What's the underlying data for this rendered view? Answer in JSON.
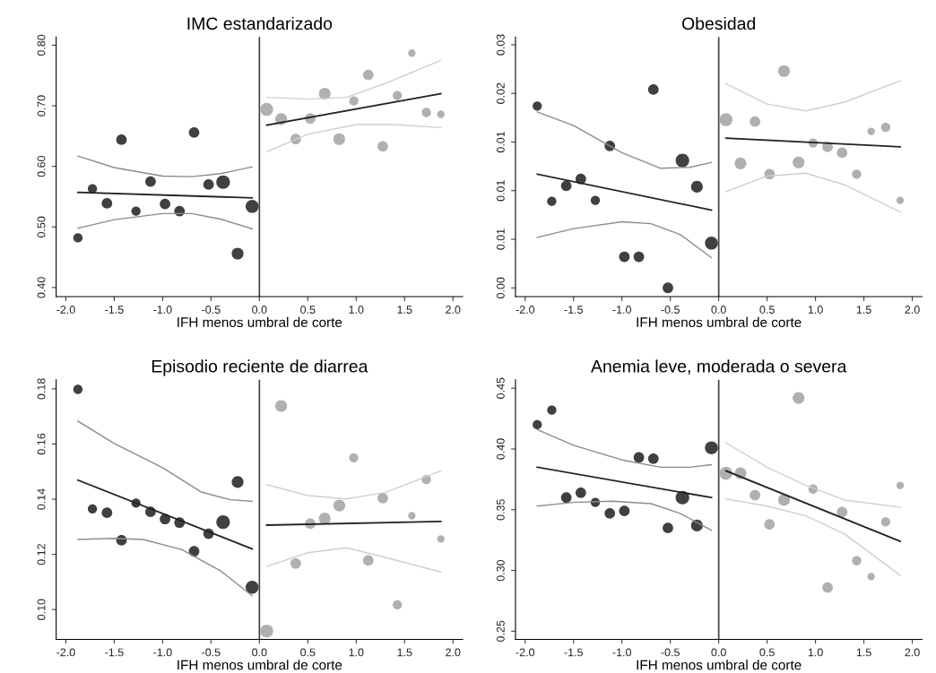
{
  "chart_data": [
    {
      "type": "bubble",
      "title": "IMC estandarizado",
      "xlabel": "IFH menos umbral de corte",
      "xlim": [
        -2.1,
        2.1
      ],
      "xticks": [
        {
          "value": -2,
          "label": "-2.0"
        },
        {
          "value": -1.5,
          "label": "-1.5"
        },
        {
          "value": -1,
          "label": "-1.0"
        },
        {
          "value": -0.5,
          "label": "-0.5"
        },
        {
          "value": 0,
          "label": "0.0"
        },
        {
          "value": 0.5,
          "label": "0.5"
        },
        {
          "value": 1,
          "label": "1.0"
        },
        {
          "value": 1.5,
          "label": "1.5"
        },
        {
          "value": 2,
          "label": "2.0"
        }
      ],
      "ylim": [
        0.385,
        0.8135
      ],
      "yticks": [
        {
          "value": 0.4,
          "label": "0.40"
        },
        {
          "value": 0.5,
          "label": "0.50"
        },
        {
          "value": 0.6,
          "label": "0.60"
        },
        {
          "value": 0.7,
          "label": "0.70"
        },
        {
          "value": 0.8,
          "label": "0.80"
        }
      ],
      "grid": false,
      "ref_lines": [
        {
          "axis": "x",
          "value": 0,
          "color": "#404040"
        }
      ],
      "series": [
        {
          "color": "#404040",
          "x": [
            -1.875,
            -1.725,
            -1.575,
            -1.425,
            -1.275,
            -1.125,
            -0.975,
            -0.825,
            -0.675,
            -0.525,
            -0.375,
            -0.225,
            -0.075
          ],
          "values": [
            0.482,
            0.563,
            0.539,
            0.644,
            0.526,
            0.575,
            0.538,
            0.526,
            0.656,
            0.57,
            0.574,
            0.456,
            0.534
          ],
          "sizes": [
            0.46,
            0.46,
            0.6,
            0.6,
            0.46,
            0.6,
            0.6,
            0.6,
            0.6,
            0.6,
            1,
            0.75,
            0.91
          ]
        },
        {
          "color": "#b0b0b0",
          "x": [
            0.075,
            0.225,
            0.375,
            0.525,
            0.675,
            0.825,
            0.975,
            1.125,
            1.275,
            1.425,
            1.575,
            1.725,
            1.875
          ],
          "values": [
            0.694,
            0.678,
            0.645,
            0.679,
            0.72,
            0.645,
            0.708,
            0.751,
            0.633,
            0.717,
            0.787,
            0.689,
            0.686
          ],
          "sizes": [
            0.91,
            0.75,
            0.6,
            0.6,
            0.75,
            0.75,
            0.46,
            0.6,
            0.6,
            0.46,
            0.3,
            0.46,
            0.3
          ]
        },
        {
          "type": "line",
          "color": "#8c8c8c",
          "x": [
            -1.875,
            -1.5,
            -1.0,
            -0.7,
            -0.4,
            -0.075
          ],
          "values": [
            0.617,
            0.598,
            0.584,
            0.583,
            0.588,
            0.599
          ]
        },
        {
          "type": "line",
          "color": "#8c8c8c",
          "x": [
            -1.875,
            -1.5,
            -1.0,
            -0.7,
            -0.4,
            -0.075
          ],
          "values": [
            0.498,
            0.512,
            0.522,
            0.522,
            0.513,
            0.497
          ]
        },
        {
          "type": "line",
          "color": "#cfcfcf",
          "x": [
            0.075,
            0.5,
            0.9,
            1.3,
            1.875
          ],
          "values": [
            0.714,
            0.711,
            0.714,
            0.737,
            0.775
          ]
        },
        {
          "type": "line",
          "color": "#cfcfcf",
          "x": [
            0.075,
            0.5,
            1.0,
            1.4,
            1.875
          ],
          "values": [
            0.624,
            0.653,
            0.669,
            0.669,
            0.664
          ]
        },
        {
          "type": "line",
          "color": "#222222",
          "x": [
            -1.875,
            -0.075
          ],
          "values": [
            0.557,
            0.548
          ]
        },
        {
          "type": "line",
          "color": "#222222",
          "x": [
            0.075,
            1.875
          ],
          "values": [
            0.668,
            0.72
          ]
        }
      ]
    },
    {
      "type": "bubble",
      "title": "Obesidad",
      "xlabel": "IFH menos umbral de corte",
      "xlim": [
        -2.1,
        2.1
      ],
      "xticks": [
        {
          "value": -2,
          "label": "-2.0"
        },
        {
          "value": -1.5,
          "label": "-1.5"
        },
        {
          "value": -1,
          "label": "-1.0"
        },
        {
          "value": -0.5,
          "label": "-0.5"
        },
        {
          "value": 0,
          "label": "0.0"
        },
        {
          "value": 0.5,
          "label": "0.5"
        },
        {
          "value": 1,
          "label": "1.0"
        },
        {
          "value": 1.5,
          "label": "1.5"
        },
        {
          "value": 2,
          "label": "2.0"
        }
      ],
      "ylim": [
        -0.0009,
        0.0258
      ],
      "yticks": [
        {
          "value": 0,
          "label": "0.00"
        },
        {
          "value": 0.005,
          "label": "0.01"
        },
        {
          "value": 0.01,
          "label": "0.01"
        },
        {
          "value": 0.015,
          "label": "0.01"
        },
        {
          "value": 0.02,
          "label": "0.02"
        },
        {
          "value": 0.025,
          "label": "0.03"
        }
      ],
      "grid": false,
      "ref_lines": [
        {
          "axis": "x",
          "value": 0,
          "color": "#404040"
        }
      ],
      "series": [
        {
          "color": "#404040",
          "x": [
            -1.875,
            -1.725,
            -1.575,
            -1.425,
            -1.275,
            -1.125,
            -0.975,
            -0.825,
            -0.675,
            -0.525,
            -0.375,
            -0.225,
            -0.075
          ],
          "values": [
            0.0187,
            0.0089,
            0.0105,
            0.0112,
            0.009,
            0.0146,
            0.0032,
            0.0032,
            0.0204,
            0.0,
            0.0131,
            0.0104,
            0.0046
          ],
          "sizes": [
            0.46,
            0.46,
            0.6,
            0.6,
            0.46,
            0.6,
            0.6,
            0.6,
            0.6,
            0.6,
            1,
            0.75,
            0.91
          ]
        },
        {
          "color": "#b0b0b0",
          "x": [
            0.075,
            0.225,
            0.375,
            0.525,
            0.675,
            0.825,
            0.975,
            1.125,
            1.275,
            1.425,
            1.575,
            1.725,
            1.875
          ],
          "values": [
            0.0173,
            0.0128,
            0.0171,
            0.0117,
            0.0223,
            0.0129,
            0.0149,
            0.0145,
            0.0139,
            0.0117,
            0.0161,
            0.0165,
            0.009
          ],
          "sizes": [
            0.91,
            0.75,
            0.6,
            0.6,
            0.75,
            0.75,
            0.46,
            0.6,
            0.6,
            0.46,
            0.3,
            0.46,
            0.3
          ]
        },
        {
          "type": "line",
          "color": "#8c8c8c",
          "x": [
            -1.875,
            -1.5,
            -1.0,
            -0.6,
            -0.3,
            -0.075
          ],
          "values": [
            0.0181,
            0.0167,
            0.0139,
            0.0123,
            0.0124,
            0.0129
          ]
        },
        {
          "type": "line",
          "color": "#8c8c8c",
          "x": [
            -1.875,
            -1.5,
            -1.0,
            -0.7,
            -0.4,
            -0.075
          ],
          "values": [
            0.0052,
            0.0061,
            0.0068,
            0.0066,
            0.0055,
            0.0031
          ]
        },
        {
          "type": "line",
          "color": "#cfcfcf",
          "x": [
            0.075,
            0.5,
            0.9,
            1.3,
            1.875
          ],
          "values": [
            0.021,
            0.0189,
            0.0182,
            0.0191,
            0.0213
          ]
        },
        {
          "type": "line",
          "color": "#cfcfcf",
          "x": [
            0.075,
            0.5,
            0.9,
            1.3,
            1.875
          ],
          "values": [
            0.0099,
            0.0115,
            0.0118,
            0.0106,
            0.0078
          ]
        },
        {
          "type": "line",
          "color": "#222222",
          "x": [
            -1.875,
            -0.075
          ],
          "values": [
            0.0117,
            0.008
          ]
        },
        {
          "type": "line",
          "color": "#222222",
          "x": [
            0.075,
            1.875
          ],
          "values": [
            0.0154,
            0.0145
          ]
        }
      ]
    },
    {
      "type": "bubble",
      "title": "Episodio reciente de diarrea",
      "xlabel": "IFH menos umbral de corte",
      "xlim": [
        -2.1,
        2.1
      ],
      "xticks": [
        {
          "value": -2,
          "label": "-2.0"
        },
        {
          "value": -1.5,
          "label": "-1.5"
        },
        {
          "value": -1,
          "label": "-1.0"
        },
        {
          "value": -0.5,
          "label": "-0.5"
        },
        {
          "value": 0,
          "label": "0.0"
        },
        {
          "value": 0.5,
          "label": "0.5"
        },
        {
          "value": 1,
          "label": "1.0"
        },
        {
          "value": 1.5,
          "label": "1.5"
        },
        {
          "value": 2,
          "label": "2.0"
        }
      ],
      "ylim": [
        0.0892,
        0.1833
      ],
      "yticks": [
        {
          "value": 0.1,
          "label": "0.10"
        },
        {
          "value": 0.12,
          "label": "0.12"
        },
        {
          "value": 0.14,
          "label": "0.14"
        },
        {
          "value": 0.16,
          "label": "0.16"
        },
        {
          "value": 0.18,
          "label": "0.18"
        }
      ],
      "grid": false,
      "ref_lines": [
        {
          "axis": "x",
          "value": 0,
          "color": "#404040"
        }
      ],
      "series": [
        {
          "color": "#404040",
          "x": [
            -1.875,
            -1.725,
            -1.575,
            -1.425,
            -1.275,
            -1.125,
            -0.975,
            -0.825,
            -0.675,
            -0.525,
            -0.375,
            -0.225,
            -0.075
          ],
          "values": [
            0.1798,
            0.1365,
            0.1351,
            0.1251,
            0.1386,
            0.1354,
            0.1328,
            0.1315,
            0.1211,
            0.1275,
            0.1317,
            0.1462,
            0.1081
          ],
          "sizes": [
            0.46,
            0.46,
            0.6,
            0.6,
            0.46,
            0.6,
            0.6,
            0.6,
            0.6,
            0.6,
            1,
            0.75,
            0.91
          ]
        },
        {
          "color": "#b0b0b0",
          "x": [
            0.075,
            0.225,
            0.375,
            0.525,
            0.675,
            0.825,
            0.975,
            1.125,
            1.275,
            1.425,
            1.575,
            1.725,
            1.875
          ],
          "values": [
            0.0922,
            0.1738,
            0.1167,
            0.1311,
            0.133,
            0.1377,
            0.155,
            0.1178,
            0.1404,
            0.1017,
            0.134,
            0.1471,
            0.1256
          ],
          "sizes": [
            0.91,
            0.75,
            0.6,
            0.6,
            0.75,
            0.75,
            0.46,
            0.6,
            0.6,
            0.46,
            0.3,
            0.46,
            0.3
          ]
        },
        {
          "type": "line",
          "color": "#8c8c8c",
          "x": [
            -1.875,
            -1.5,
            -1.0,
            -0.6,
            -0.3,
            -0.075
          ],
          "values": [
            0.1683,
            0.1602,
            0.1514,
            0.1426,
            0.1398,
            0.1392
          ]
        },
        {
          "type": "line",
          "color": "#8c8c8c",
          "x": [
            -1.875,
            -1.5,
            -1.2,
            -0.8,
            -0.4,
            -0.075
          ],
          "values": [
            0.1254,
            0.1258,
            0.1254,
            0.1217,
            0.114,
            0.105
          ]
        },
        {
          "type": "line",
          "color": "#cfcfcf",
          "x": [
            0.075,
            0.5,
            0.9,
            1.3,
            1.875
          ],
          "values": [
            0.1453,
            0.1413,
            0.1401,
            0.1424,
            0.1503
          ]
        },
        {
          "type": "line",
          "color": "#cfcfcf",
          "x": [
            0.075,
            0.5,
            0.9,
            1.3,
            1.875
          ],
          "values": [
            0.1156,
            0.1206,
            0.1224,
            0.1189,
            0.1136
          ]
        },
        {
          "type": "line",
          "color": "#222222",
          "x": [
            -1.875,
            -0.075
          ],
          "values": [
            0.1469,
            0.122
          ]
        },
        {
          "type": "line",
          "color": "#222222",
          "x": [
            0.075,
            1.875
          ],
          "values": [
            0.1306,
            0.1319
          ]
        }
      ]
    },
    {
      "type": "bubble",
      "title": "Anemia leve, moderada o severa",
      "xlabel": "IFH menos umbral de corte",
      "xlim": [
        -2.1,
        2.1
      ],
      "xticks": [
        {
          "value": -2,
          "label": "-2.0"
        },
        {
          "value": -1.5,
          "label": "-1.5"
        },
        {
          "value": -1,
          "label": "-1.0"
        },
        {
          "value": -0.5,
          "label": "-0.5"
        },
        {
          "value": 0,
          "label": "0.0"
        },
        {
          "value": 0.5,
          "label": "0.5"
        },
        {
          "value": 1,
          "label": "1.0"
        },
        {
          "value": 1.5,
          "label": "1.5"
        },
        {
          "value": 2,
          "label": "2.0"
        }
      ],
      "ylim": [
        0.2433,
        0.457
      ],
      "yticks": [
        {
          "value": 0.25,
          "label": "0.25"
        },
        {
          "value": 0.3,
          "label": "0.30"
        },
        {
          "value": 0.35,
          "label": "0.35"
        },
        {
          "value": 0.4,
          "label": "0.40"
        },
        {
          "value": 0.45,
          "label": "0.45"
        }
      ],
      "grid": false,
      "ref_lines": [
        {
          "axis": "x",
          "value": 0,
          "color": "#404040"
        }
      ],
      "series": [
        {
          "color": "#404040",
          "x": [
            -1.875,
            -1.725,
            -1.575,
            -1.425,
            -1.275,
            -1.125,
            -0.975,
            -0.825,
            -0.675,
            -0.525,
            -0.375,
            -0.225,
            -0.075
          ],
          "values": [
            0.42,
            0.432,
            0.36,
            0.364,
            0.356,
            0.347,
            0.349,
            0.393,
            0.392,
            0.335,
            0.36,
            0.337,
            0.401
          ],
          "sizes": [
            0.46,
            0.46,
            0.6,
            0.6,
            0.46,
            0.6,
            0.6,
            0.6,
            0.6,
            0.6,
            1,
            0.75,
            0.91
          ]
        },
        {
          "color": "#b0b0b0",
          "x": [
            0.075,
            0.225,
            0.375,
            0.525,
            0.675,
            0.825,
            0.975,
            1.125,
            1.275,
            1.425,
            1.575,
            1.725,
            1.875
          ],
          "values": [
            0.38,
            0.38,
            0.362,
            0.338,
            0.358,
            0.442,
            0.367,
            0.286,
            0.348,
            0.308,
            0.295,
            0.34,
            0.37
          ],
          "sizes": [
            0.91,
            0.75,
            0.6,
            0.6,
            0.75,
            0.75,
            0.46,
            0.6,
            0.6,
            0.46,
            0.3,
            0.46,
            0.3
          ]
        },
        {
          "type": "line",
          "color": "#8c8c8c",
          "x": [
            -1.875,
            -1.5,
            -1.0,
            -0.6,
            -0.3,
            -0.075
          ],
          "values": [
            0.416,
            0.403,
            0.391,
            0.385,
            0.385,
            0.387
          ]
        },
        {
          "type": "line",
          "color": "#8c8c8c",
          "x": [
            -1.875,
            -1.5,
            -1.1,
            -0.7,
            -0.4,
            -0.075
          ],
          "values": [
            0.353,
            0.356,
            0.357,
            0.355,
            0.347,
            0.333
          ]
        },
        {
          "type": "line",
          "color": "#cfcfcf",
          "x": [
            0.075,
            0.5,
            0.9,
            1.3,
            1.875
          ],
          "values": [
            0.405,
            0.385,
            0.37,
            0.358,
            0.352
          ]
        },
        {
          "type": "line",
          "color": "#cfcfcf",
          "x": [
            0.075,
            0.5,
            0.9,
            1.3,
            1.875
          ],
          "values": [
            0.359,
            0.353,
            0.345,
            0.33,
            0.296
          ]
        },
        {
          "type": "line",
          "color": "#222222",
          "x": [
            -1.875,
            -0.075
          ],
          "values": [
            0.385,
            0.36
          ]
        },
        {
          "type": "line",
          "color": "#222222",
          "x": [
            0.075,
            1.875
          ],
          "values": [
            0.382,
            0.324
          ]
        }
      ]
    }
  ]
}
